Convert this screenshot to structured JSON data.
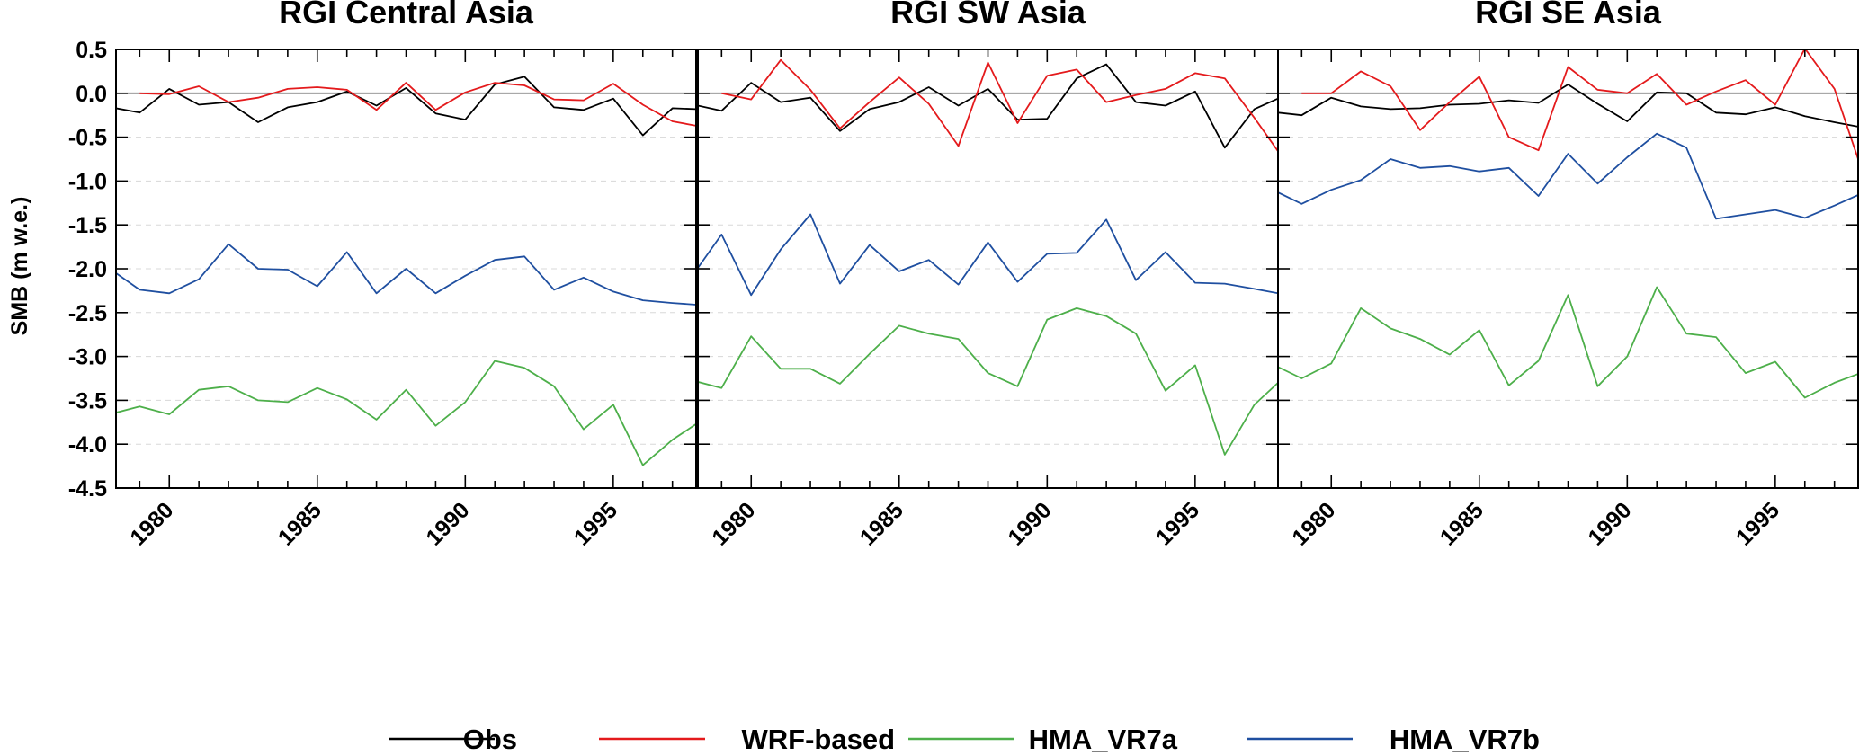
{
  "chart_data": {
    "type": "line",
    "ylabel": "SMB (m w.e.)",
    "ylim": [
      -4.5,
      0.5
    ],
    "xlim": [
      1978.2,
      1997.8
    ],
    "yticks": [
      0.5,
      0.0,
      -0.5,
      -1.0,
      -1.5,
      -2.0,
      -2.5,
      -3.0,
      -3.5,
      -4.0,
      -4.5
    ],
    "ytick_labels": [
      "0.5",
      "0.0",
      "-0.5",
      "-1.0",
      "-1.5",
      "-2.0",
      "-2.5",
      "-3.0",
      "-3.5",
      "-4.0",
      "-4.5"
    ],
    "xticks": [
      1980,
      1985,
      1990,
      1995
    ],
    "xtick_labels": [
      "1980",
      "1985",
      "1990",
      "1995"
    ],
    "grid": "dashed horizontal at y ticks, solid reference line at 0",
    "legend_placement": "bottom",
    "legend": [
      {
        "label": "Obs",
        "color": "#000000"
      },
      {
        "label": "WRF-based",
        "color": "#e41a1c"
      },
      {
        "label": "HMA_VR7a",
        "color": "#4daf4a"
      },
      {
        "label": "HMA_VR7b",
        "color": "#1f4fa0"
      }
    ],
    "panels": [
      {
        "title": "RGI Central Asia",
        "series": [
          {
            "name": "Obs",
            "color": "#000000",
            "x": [
              1978.2,
              1979,
              1980,
              1981,
              1982,
              1983,
              1984,
              1985,
              1986,
              1987,
              1988,
              1989,
              1990,
              1991,
              1992,
              1993,
              1994,
              1995,
              1996,
              1997,
              1997.8
            ],
            "y": [
              -0.17,
              -0.22,
              0.05,
              -0.13,
              -0.1,
              -0.33,
              -0.16,
              -0.1,
              0.02,
              -0.14,
              0.06,
              -0.23,
              -0.3,
              0.1,
              0.19,
              -0.16,
              -0.19,
              -0.06,
              -0.48,
              -0.17,
              -0.18
            ]
          },
          {
            "name": "WRF-based",
            "color": "#e41a1c",
            "x": [
              1979,
              1980,
              1981,
              1982,
              1983,
              1984,
              1985,
              1986,
              1987,
              1988,
              1989,
              1990,
              1991,
              1992,
              1993,
              1994,
              1995,
              1996,
              1997,
              1997.8
            ],
            "y": [
              0.0,
              -0.01,
              0.08,
              -0.1,
              -0.05,
              0.05,
              0.07,
              0.04,
              -0.19,
              0.12,
              -0.19,
              0.01,
              0.12,
              0.09,
              -0.07,
              -0.08,
              0.11,
              -0.13,
              -0.32,
              -0.37
            ]
          },
          {
            "name": "HMA_VR7b",
            "color": "#1f4fa0",
            "x": [
              1978.2,
              1979,
              1980,
              1981,
              1982,
              1983,
              1984,
              1985,
              1986,
              1987,
              1988,
              1989,
              1990,
              1991,
              1992,
              1993,
              1994,
              1995,
              1996,
              1997,
              1997.8
            ],
            "y": [
              -2.05,
              -2.24,
              -2.28,
              -2.12,
              -1.72,
              -2.0,
              -2.01,
              -2.2,
              -1.81,
              -2.28,
              -2.0,
              -2.28,
              -2.08,
              -1.9,
              -1.86,
              -2.24,
              -2.1,
              -2.26,
              -2.36,
              -2.39,
              -2.41
            ]
          },
          {
            "name": "HMA_VR7a",
            "color": "#4daf4a",
            "x": [
              1978.2,
              1979,
              1980,
              1981,
              1982,
              1983,
              1984,
              1985,
              1986,
              1987,
              1988,
              1989,
              1990,
              1991,
              1992,
              1993,
              1994,
              1995,
              1996,
              1997,
              1997.8
            ],
            "y": [
              -3.64,
              -3.57,
              -3.66,
              -3.38,
              -3.34,
              -3.5,
              -3.52,
              -3.36,
              -3.49,
              -3.72,
              -3.38,
              -3.79,
              -3.52,
              -3.05,
              -3.13,
              -3.34,
              -3.83,
              -3.55,
              -4.24,
              -3.95,
              -3.77
            ]
          }
        ]
      },
      {
        "title": "RGI SW Asia",
        "series": [
          {
            "name": "Obs",
            "color": "#000000",
            "x": [
              1978.2,
              1979,
              1980,
              1981,
              1982,
              1983,
              1984,
              1985,
              1986,
              1987,
              1988,
              1989,
              1990,
              1991,
              1992,
              1993,
              1994,
              1995,
              1996,
              1997,
              1997.8
            ],
            "y": [
              -0.14,
              -0.2,
              0.12,
              -0.1,
              -0.05,
              -0.43,
              -0.18,
              -0.1,
              0.07,
              -0.14,
              0.05,
              -0.3,
              -0.29,
              0.17,
              0.33,
              -0.1,
              -0.14,
              0.02,
              -0.62,
              -0.18,
              -0.06
            ]
          },
          {
            "name": "WRF-based",
            "color": "#e41a1c",
            "x": [
              1979,
              1980,
              1981,
              1982,
              1983,
              1984,
              1985,
              1986,
              1987,
              1988,
              1989,
              1990,
              1991,
              1992,
              1993,
              1994,
              1995,
              1996,
              1997,
              1997.8
            ],
            "y": [
              0.0,
              -0.07,
              0.38,
              0.04,
              -0.4,
              -0.1,
              0.18,
              -0.12,
              -0.6,
              0.35,
              -0.34,
              0.2,
              0.27,
              -0.1,
              -0.02,
              0.05,
              0.23,
              0.17,
              -0.28,
              -0.66
            ]
          },
          {
            "name": "HMA_VR7b",
            "color": "#1f4fa0",
            "x": [
              1978.2,
              1979,
              1980,
              1981,
              1982,
              1983,
              1984,
              1985,
              1986,
              1987,
              1988,
              1989,
              1990,
              1991,
              1992,
              1993,
              1994,
              1995,
              1996,
              1997,
              1997.8
            ],
            "y": [
              -1.99,
              -1.61,
              -2.3,
              -1.78,
              -1.38,
              -2.17,
              -1.73,
              -2.03,
              -1.9,
              -2.18,
              -1.7,
              -2.15,
              -1.83,
              -1.82,
              -1.44,
              -2.13,
              -1.81,
              -2.16,
              -2.17,
              -2.23,
              -2.28
            ]
          },
          {
            "name": "HMA_VR7a",
            "color": "#4daf4a",
            "x": [
              1978.2,
              1979,
              1980,
              1981,
              1982,
              1983,
              1984,
              1985,
              1986,
              1987,
              1988,
              1989,
              1990,
              1991,
              1992,
              1993,
              1994,
              1995,
              1996,
              1997,
              1997.8
            ],
            "y": [
              -3.29,
              -3.36,
              -2.77,
              -3.14,
              -3.14,
              -3.31,
              -2.97,
              -2.65,
              -2.74,
              -2.8,
              -3.19,
              -3.34,
              -2.58,
              -2.45,
              -2.54,
              -2.74,
              -3.39,
              -3.1,
              -4.12,
              -3.55,
              -3.3
            ]
          }
        ]
      },
      {
        "title": "RGI SE Asia",
        "series": [
          {
            "name": "Obs",
            "color": "#000000",
            "x": [
              1978.2,
              1979,
              1980,
              1981,
              1982,
              1983,
              1984,
              1985,
              1986,
              1987,
              1988,
              1989,
              1990,
              1991,
              1992,
              1993,
              1994,
              1995,
              1996,
              1997,
              1997.8
            ],
            "y": [
              -0.22,
              -0.25,
              -0.05,
              -0.15,
              -0.18,
              -0.17,
              -0.13,
              -0.12,
              -0.08,
              -0.11,
              0.1,
              -0.12,
              -0.32,
              0.01,
              0.0,
              -0.22,
              -0.24,
              -0.16,
              -0.26,
              -0.33,
              -0.38
            ]
          },
          {
            "name": "WRF-based",
            "color": "#e41a1c",
            "x": [
              1979,
              1980,
              1981,
              1982,
              1983,
              1984,
              1985,
              1986,
              1987,
              1988,
              1989,
              1990,
              1991,
              1992,
              1993,
              1994,
              1995,
              1996,
              1997,
              1997.8
            ],
            "y": [
              0.0,
              0.0,
              0.25,
              0.08,
              -0.42,
              -0.1,
              0.19,
              -0.5,
              -0.65,
              0.3,
              0.04,
              0.0,
              0.22,
              -0.13,
              0.02,
              0.15,
              -0.13,
              0.51,
              0.05,
              -0.75
            ]
          },
          {
            "name": "HMA_VR7b",
            "color": "#1f4fa0",
            "x": [
              1978.2,
              1979,
              1980,
              1981,
              1982,
              1983,
              1984,
              1985,
              1986,
              1987,
              1988,
              1989,
              1990,
              1991,
              1992,
              1993,
              1994,
              1995,
              1996,
              1997,
              1997.8
            ],
            "y": [
              -1.13,
              -1.26,
              -1.1,
              -0.99,
              -0.75,
              -0.85,
              -0.83,
              -0.89,
              -0.85,
              -1.17,
              -0.69,
              -1.03,
              -0.73,
              -0.46,
              -0.62,
              -1.43,
              -1.38,
              -1.33,
              -1.42,
              -1.28,
              -1.16
            ]
          },
          {
            "name": "HMA_VR7a",
            "color": "#4daf4a",
            "x": [
              1978.2,
              1979,
              1980,
              1981,
              1982,
              1983,
              1984,
              1985,
              1986,
              1987,
              1988,
              1989,
              1990,
              1991,
              1992,
              1993,
              1994,
              1995,
              1996,
              1997,
              1997.8
            ],
            "y": [
              -3.12,
              -3.25,
              -3.08,
              -2.45,
              -2.68,
              -2.8,
              -2.98,
              -2.7,
              -3.33,
              -3.05,
              -2.3,
              -3.34,
              -3.0,
              -2.21,
              -2.74,
              -2.78,
              -3.19,
              -3.06,
              -3.47,
              -3.3,
              -3.2
            ]
          }
        ]
      }
    ]
  }
}
